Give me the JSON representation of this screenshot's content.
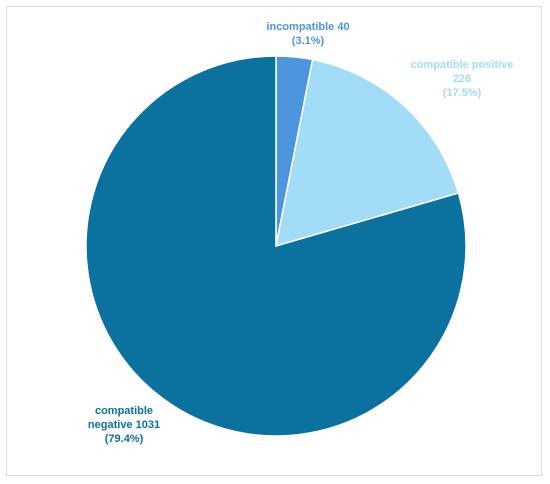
{
  "chart_data": {
    "type": "pie",
    "title": "",
    "slices": [
      {
        "name": "incompatible",
        "value": 40,
        "percent": "3.1%",
        "color": "#4d96de",
        "label_lines": [
          "incompatible 40",
          "(3.1%)"
        ]
      },
      {
        "name": "compatible positive",
        "value": 226,
        "percent": "17.5%",
        "color": "#a3dcf7",
        "label_lines": [
          "compatible positive",
          "226",
          "(17.5%)"
        ]
      },
      {
        "name": "compatible negative",
        "value": 1031,
        "percent": "79.4%",
        "color": "#0b72a0",
        "label_lines": [
          "compatible",
          "negative 1031",
          "(79.4%)"
        ]
      }
    ],
    "start_angle": "top",
    "direction": "clockwise",
    "legend": "none",
    "label_colors": {
      "incompatible": "#4d96de",
      "compatible positive": "#a3dcf7",
      "compatible negative": "#0b72a0"
    }
  }
}
